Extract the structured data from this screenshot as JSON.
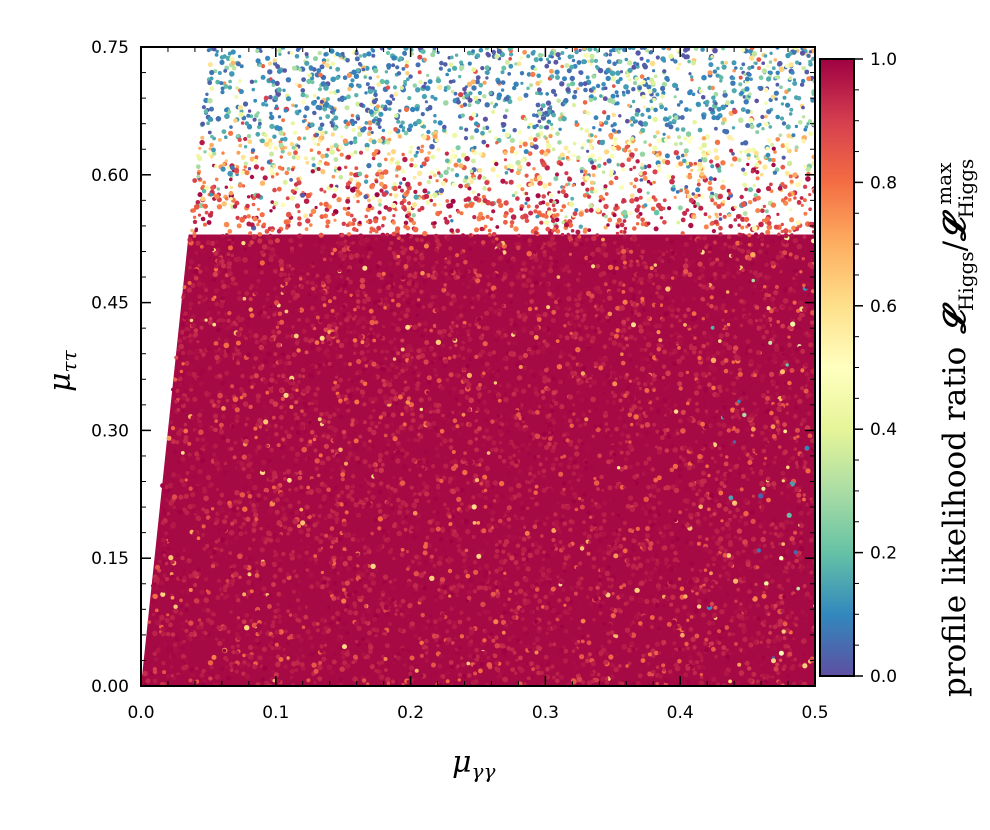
{
  "chart_data": {
    "type": "scatter",
    "title": "",
    "xlabel": {
      "symbol": "μ",
      "subscript": "γγ"
    },
    "ylabel": {
      "symbol": "μ",
      "subscript": "ττ"
    },
    "xlim": [
      0.0,
      0.5
    ],
    "ylim": [
      0.0,
      0.75
    ],
    "x_ticks": [
      "0.0",
      "0.1",
      "0.2",
      "0.3",
      "0.4",
      "0.5"
    ],
    "y_ticks": [
      "0.00",
      "0.15",
      "0.30",
      "0.45",
      "0.60",
      "0.75"
    ],
    "colorbar": {
      "label_text": "profile likelihood ratio",
      "label_math": {
        "symbol": "𝓛",
        "subscript": "Higgs",
        "divider": "/",
        "symbol2": "𝓛",
        "subscript2": "Higgs",
        "superscript2": "max"
      },
      "range": [
        0.0,
        1.0
      ],
      "ticks": [
        "0.0",
        "0.2",
        "0.4",
        "0.6",
        "0.8",
        "1.0"
      ],
      "colormap": "Spectral_r",
      "colormap_stops": [
        "#5e4fa2",
        "#3288bd",
        "#66c2a5",
        "#abdda4",
        "#e6f598",
        "#ffffbf",
        "#fee08b",
        "#fdae61",
        "#f46d43",
        "#d53e4f",
        "#9e0142"
      ]
    },
    "region": {
      "description_of_support": "points fill region to the right of the line x ≈ 0.0667·y, up to y = 0.75",
      "boundary_line": [
        [
          0.0,
          0.0
        ],
        [
          0.05,
          0.75
        ]
      ],
      "high_likelihood_region": {
        "x": [
          0.0,
          0.5
        ],
        "y": [
          0.0,
          0.53
        ],
        "value": 1.0
      },
      "transition_band_y": [
        0.53,
        0.65
      ],
      "low_likelihood_region_y": [
        0.65,
        0.75
      ]
    }
  }
}
